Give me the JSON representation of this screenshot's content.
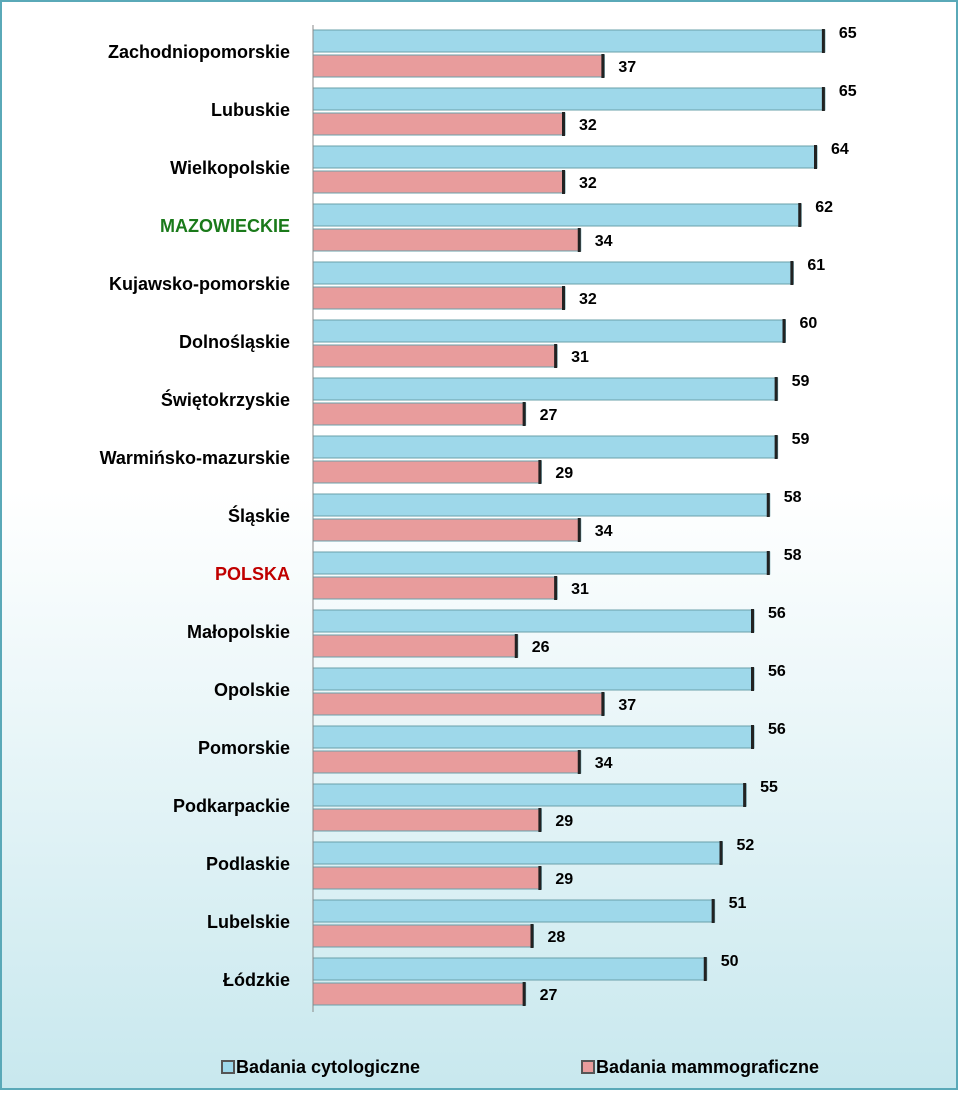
{
  "chart_data": {
    "type": "bar",
    "orientation": "horizontal",
    "categories": [
      "Zachodniopomorskie",
      "Lubuskie",
      "Wielkopolskie",
      "MAZOWIECKIE",
      "Kujawsko-pomorskie",
      "Dolnośląskie",
      "Świętokrzyskie",
      "Warmińsko-mazurskie",
      "Śląskie",
      "POLSKA",
      "Małopolskie",
      "Opolskie",
      "Pomorskie",
      "Podkarpackie",
      "Podlaskie",
      "Lubelskie",
      "Łódzkie"
    ],
    "category_colors": [
      "#000000",
      "#000000",
      "#000000",
      "#1a7a1a",
      "#000000",
      "#000000",
      "#000000",
      "#000000",
      "#000000",
      "#c00000",
      "#000000",
      "#000000",
      "#000000",
      "#000000",
      "#000000",
      "#000000",
      "#000000"
    ],
    "series": [
      {
        "name": "Badania cytologiczne",
        "color": "#9ed8ea",
        "values": [
          65,
          65,
          64,
          62,
          61,
          60,
          59,
          59,
          58,
          58,
          56,
          56,
          56,
          55,
          52,
          51,
          50
        ]
      },
      {
        "name": "Badania mammograficzne",
        "color": "#e89c9c",
        "values": [
          37,
          32,
          32,
          34,
          32,
          31,
          27,
          29,
          34,
          31,
          26,
          37,
          34,
          29,
          29,
          28,
          27
        ]
      }
    ],
    "xlim": [
      0,
      80
    ],
    "legend": "bottom"
  }
}
